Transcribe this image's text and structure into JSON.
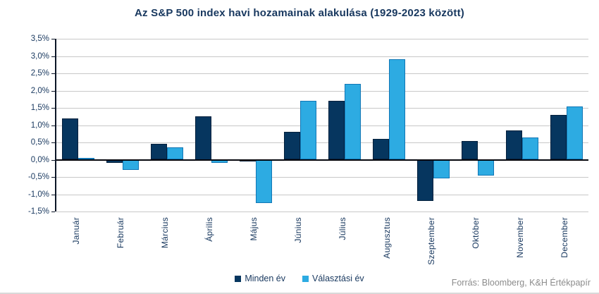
{
  "source": "Forrás: Bloomberg, K&H Értékpapír",
  "colors": {
    "title_text": "#17375e",
    "axis_text": "#17375e",
    "gridline": "#c8c8c8",
    "zero_axis_line": "#05070d",
    "source_text": "#8c8c8c",
    "background": "#ffffff"
  },
  "chart_data": {
    "type": "bar",
    "title": "Az S&P 500 index havi hozamainak alakulása (1929-2023 között)",
    "xlabel": "",
    "ylabel": "",
    "categories": [
      "Január",
      "Február",
      "Március",
      "Április",
      "Május",
      "Június",
      "Július",
      "Augusztus",
      "Szeptember",
      "Október",
      "November",
      "December"
    ],
    "series": [
      {
        "name": "Minden év",
        "color": "#06365f",
        "border_color": "#04203c",
        "values": [
          1.2,
          -0.1,
          0.45,
          1.25,
          -0.05,
          0.8,
          1.7,
          0.6,
          -1.2,
          0.55,
          0.85,
          1.3
        ]
      },
      {
        "name": "Választási év",
        "color": "#2dabe2",
        "border_color": "#1176b5",
        "values": [
          0.05,
          -0.3,
          0.35,
          -0.1,
          -1.25,
          1.7,
          2.2,
          2.9,
          -0.55,
          -0.45,
          0.65,
          1.55
        ]
      }
    ],
    "ylim": [
      -1.5,
      3.5
    ],
    "ytick_step": 0.5,
    "ytick_labels": [
      "3,5%",
      "3,0%",
      "2,5%",
      "2,0%",
      "1,5%",
      "1,0%",
      "0,5%",
      "0,0%",
      "-0,5%",
      "-1,0%",
      "-1,5%"
    ],
    "grid": true,
    "legend_position": "bottom"
  }
}
